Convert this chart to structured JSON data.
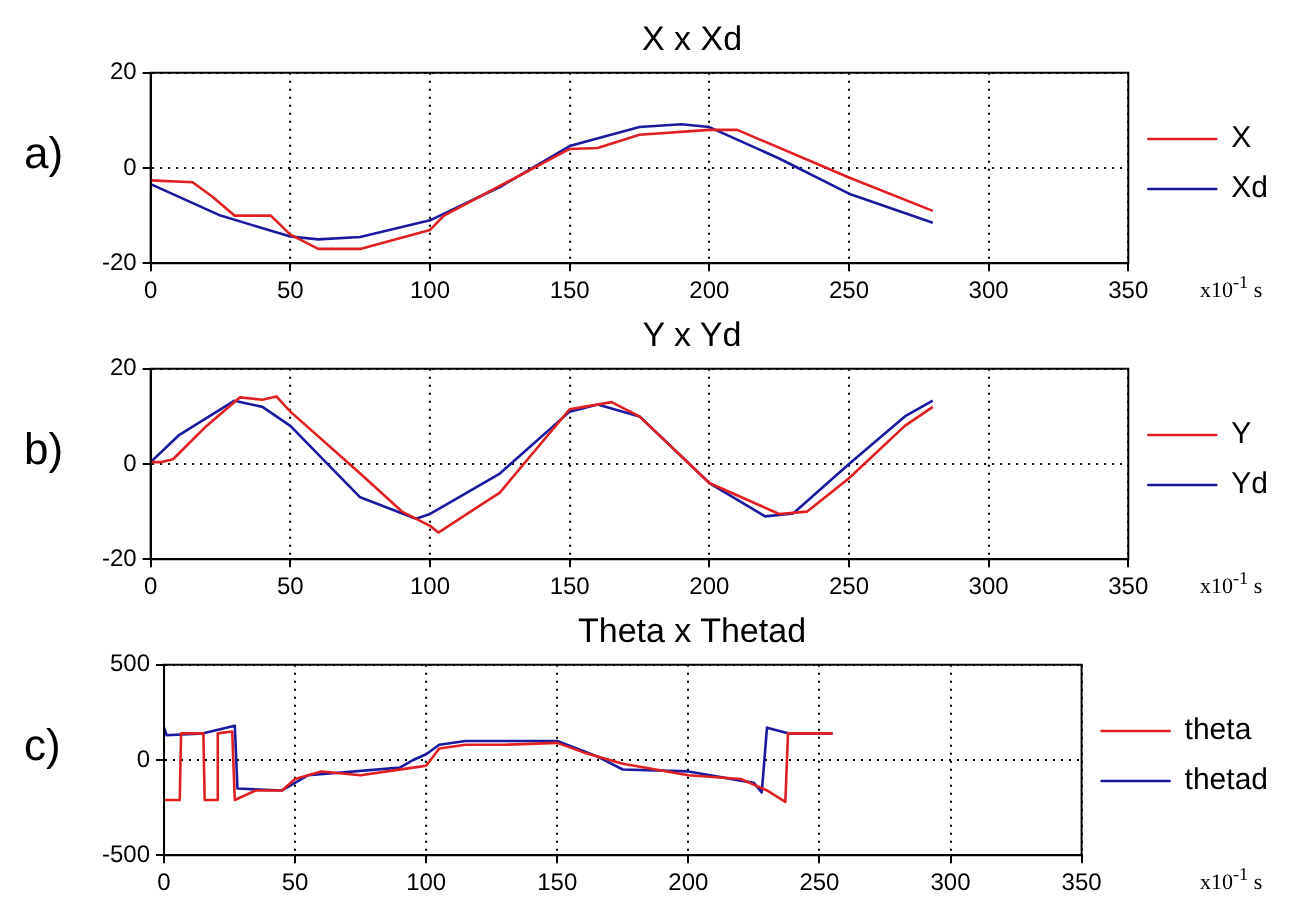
{
  "chart_data": [
    {
      "type": "line",
      "title": "X x Xd",
      "xlabel": "x10$^{-1}$ s",
      "annotations": [
        "a)"
      ],
      "xlim": [
        0,
        350
      ],
      "xticks": [
        0,
        50,
        100,
        150,
        200,
        250,
        300,
        350
      ],
      "ylim": [
        -20,
        20
      ],
      "yticks": [
        -20,
        0,
        20
      ],
      "grid": true,
      "legend": "right",
      "line_style": "solid",
      "series": [
        {
          "name": "X",
          "color": "#e02020",
          "x": [
            0,
            15,
            22,
            30,
            43,
            50,
            60,
            75,
            100,
            105,
            150,
            160,
            175,
            200,
            210,
            250,
            280
          ],
          "values": [
            -2.6,
            -3,
            -6,
            -10,
            -10,
            -14,
            -17,
            -17,
            -13,
            -10,
            4,
            4.2,
            7,
            8,
            8,
            -2,
            -9
          ]
        },
        {
          "name": "Xd",
          "color": "#1a1aa0",
          "x": [
            0,
            25,
            50,
            60,
            75,
            100,
            125,
            150,
            175,
            190,
            200,
            225,
            250,
            280
          ],
          "values": [
            -3.4,
            -10,
            -14.4,
            -15,
            -14.5,
            -11,
            -4,
            4.6,
            8.6,
            9.2,
            8.6,
            2,
            -5.4,
            -11.5
          ]
        }
      ]
    },
    {
      "type": "line",
      "title": "Y x Yd",
      "xlabel": "x10$^{-1}$ s",
      "annotations": [
        "b)"
      ],
      "xlim": [
        0,
        350
      ],
      "xticks": [
        0,
        50,
        100,
        150,
        200,
        250,
        300,
        350
      ],
      "ylim": [
        -20,
        20
      ],
      "yticks": [
        -20,
        0,
        20
      ],
      "grid": true,
      "legend": "right",
      "line_style": "solid",
      "series": [
        {
          "name": "Y",
          "color": "#e02020",
          "x": [
            0,
            4,
            8,
            20,
            32,
            40,
            45,
            50,
            75,
            90,
            100,
            103,
            125,
            150,
            165,
            175,
            200,
            225,
            235,
            250,
            270,
            280
          ],
          "values": [
            0.4,
            0.4,
            1,
            8,
            14,
            13.5,
            14.2,
            11,
            -2,
            -10,
            -13,
            -14.4,
            -6,
            11.5,
            13,
            10,
            -4,
            -10.5,
            -10,
            -3,
            8,
            12
          ]
        },
        {
          "name": "Yd",
          "color": "#1a1aa0",
          "x": [
            0,
            10,
            30,
            40,
            50,
            75,
            95,
            100,
            125,
            150,
            160,
            175,
            200,
            220,
            230,
            250,
            270,
            280
          ],
          "values": [
            0.4,
            6,
            13.3,
            12,
            8,
            -7,
            -11.5,
            -10.5,
            -2,
            11,
            12.5,
            10,
            -4,
            -11,
            -10.4,
            0,
            10,
            13.3
          ]
        }
      ]
    },
    {
      "type": "line",
      "title": "Theta x Thetad",
      "xlabel": "x10$^{-1}$ s",
      "annotations": [
        "c)"
      ],
      "xlim": [
        0,
        350
      ],
      "xticks": [
        0,
        50,
        100,
        150,
        200,
        250,
        300,
        350
      ],
      "ylim": [
        -500,
        500
      ],
      "yticks": [
        -500,
        0,
        500
      ],
      "grid": true,
      "legend": "right",
      "line_style": "solid",
      "series": [
        {
          "name": "theta",
          "color": "#e02020",
          "x": [
            0,
            6,
            6.5,
            15,
            15.5,
            20,
            20.5,
            26,
            27,
            35,
            45,
            50,
            60,
            75,
            95,
            100,
            105,
            115,
            130,
            150,
            160,
            175,
            200,
            220,
            230,
            237,
            238,
            255
          ],
          "values": [
            -210,
            -210,
            140,
            140,
            -210,
            -210,
            140,
            150,
            -210,
            -160,
            -160,
            -100,
            -60,
            -80,
            -40,
            -30,
            60,
            80,
            80,
            90,
            40,
            -20,
            -80,
            -100,
            -160,
            -220,
            140,
            140
          ]
        },
        {
          "name": "thetad",
          "color": "#1a1aa0",
          "x": [
            0,
            1,
            15,
            27,
            28,
            45,
            55,
            90,
            95,
            100,
            105,
            115,
            150,
            165,
            175,
            200,
            225,
            228,
            230,
            238,
            255
          ],
          "values": [
            170,
            130,
            140,
            180,
            -150,
            -160,
            -80,
            -40,
            0,
            30,
            80,
            100,
            100,
            20,
            -50,
            -60,
            -120,
            -170,
            170,
            140,
            140
          ]
        }
      ]
    }
  ]
}
